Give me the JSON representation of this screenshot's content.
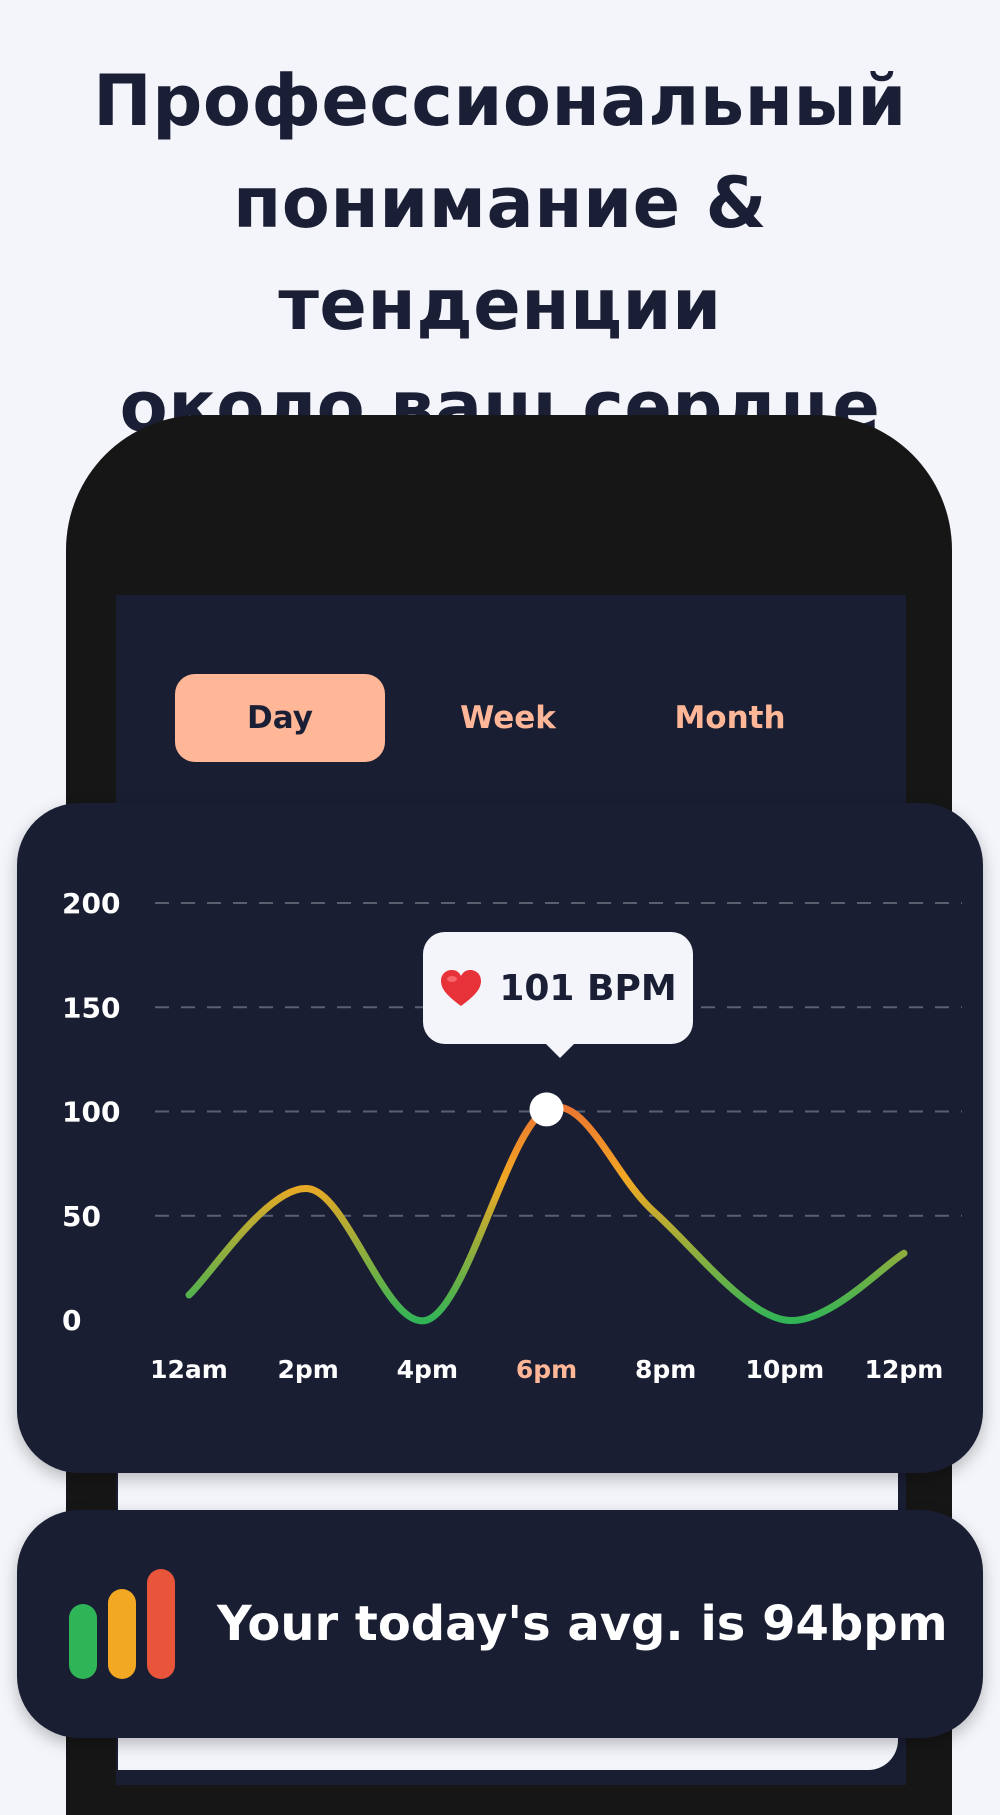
{
  "headline": {
    "lines": [
      "Профессиональный",
      "понимание & тенденции",
      "около ваш сердце"
    ]
  },
  "tabs": [
    {
      "label": "Day",
      "active": true
    },
    {
      "label": "Week",
      "active": false
    },
    {
      "label": "Month",
      "active": false
    }
  ],
  "tooltip": {
    "icon": "heart-icon",
    "text": "101 BPM"
  },
  "chart_data": {
    "type": "line",
    "x": [
      "12am",
      "2pm",
      "4pm",
      "6pm",
      "8pm",
      "10pm",
      "12pm"
    ],
    "highlight_x": "6pm",
    "y_ticks": [
      200,
      150,
      100,
      50,
      0
    ],
    "ylim": [
      0,
      200
    ],
    "grid": "dashed horizontal",
    "series": [
      {
        "points": [
          {
            "x": 0,
            "y": 12
          },
          {
            "x": 1,
            "y": 63
          },
          {
            "x": 2,
            "y": 0
          },
          {
            "x": 3,
            "y": 101
          },
          {
            "x": 3.9,
            "y": 52
          },
          {
            "x": 5,
            "y": 0
          },
          {
            "x": 6,
            "y": 32
          }
        ]
      }
    ],
    "marker": {
      "x": 3,
      "y": 101
    },
    "colors": {
      "low": "#2fb457",
      "mid": "#f2a823",
      "high": "#e8553a",
      "axis": "#ffffff",
      "highlight": "#ffb797",
      "grid": "#5a5f70"
    }
  },
  "average": {
    "text": "Your today's avg. is 94bpm",
    "icon": "bar-chart-icon",
    "bar_colors": [
      "#2fb457",
      "#f2a823",
      "#e8553a"
    ]
  }
}
